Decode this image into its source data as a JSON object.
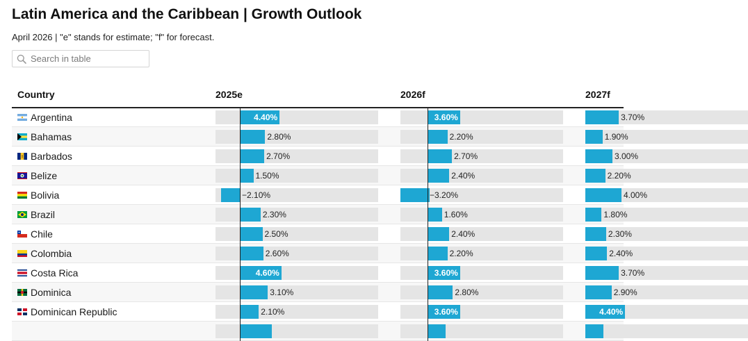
{
  "title": "Latin America and the Caribbean | Growth Outlook",
  "subtitle": "April 2026 | \"e\" stands for estimate; \"f\" for forecast.",
  "search": {
    "placeholder": "Search in table",
    "icon": "search-icon"
  },
  "columns": [
    "Country",
    "2025e",
    "2026f",
    "2027f"
  ],
  "bar_color": "#1ea7d3",
  "rows": [
    {
      "country": "Argentina",
      "flag": "argentina",
      "values": [
        "4.40%",
        "3.60%",
        "3.70%"
      ],
      "nums": [
        4.4,
        3.6,
        3.7
      ],
      "inside": [
        true,
        true,
        false
      ]
    },
    {
      "country": "Bahamas",
      "flag": "bahamas",
      "values": [
        "2.80%",
        "2.20%",
        "1.90%"
      ],
      "nums": [
        2.8,
        2.2,
        1.9
      ],
      "inside": [
        false,
        false,
        false
      ]
    },
    {
      "country": "Barbados",
      "flag": "barbados",
      "values": [
        "2.70%",
        "2.70%",
        "3.00%"
      ],
      "nums": [
        2.7,
        2.7,
        3.0
      ],
      "inside": [
        false,
        false,
        false
      ]
    },
    {
      "country": "Belize",
      "flag": "belize",
      "values": [
        "1.50%",
        "2.40%",
        "2.20%"
      ],
      "nums": [
        1.5,
        2.4,
        2.2
      ],
      "inside": [
        false,
        false,
        false
      ]
    },
    {
      "country": "Bolivia",
      "flag": "bolivia",
      "values": [
        "−2.10%",
        "−3.20%",
        "4.00%"
      ],
      "nums": [
        -2.1,
        -3.2,
        4.0
      ],
      "inside": [
        false,
        false,
        false
      ]
    },
    {
      "country": "Brazil",
      "flag": "brazil",
      "values": [
        "2.30%",
        "1.60%",
        "1.80%"
      ],
      "nums": [
        2.3,
        1.6,
        1.8
      ],
      "inside": [
        false,
        false,
        false
      ]
    },
    {
      "country": "Chile",
      "flag": "chile",
      "values": [
        "2.50%",
        "2.40%",
        "2.30%"
      ],
      "nums": [
        2.5,
        2.4,
        2.3
      ],
      "inside": [
        false,
        false,
        false
      ]
    },
    {
      "country": "Colombia",
      "flag": "colombia",
      "values": [
        "2.60%",
        "2.20%",
        "2.40%"
      ],
      "nums": [
        2.6,
        2.2,
        2.4
      ],
      "inside": [
        false,
        false,
        false
      ]
    },
    {
      "country": "Costa Rica",
      "flag": "costa-rica",
      "values": [
        "4.60%",
        "3.60%",
        "3.70%"
      ],
      "nums": [
        4.6,
        3.6,
        3.7
      ],
      "inside": [
        true,
        true,
        false
      ]
    },
    {
      "country": "Dominica",
      "flag": "dominica",
      "values": [
        "3.10%",
        "2.80%",
        "2.90%"
      ],
      "nums": [
        3.1,
        2.8,
        2.9
      ],
      "inside": [
        false,
        false,
        false
      ]
    },
    {
      "country": "Dominican Republic",
      "flag": "dominican-republic",
      "values": [
        "2.10%",
        "3.60%",
        "4.40%"
      ],
      "nums": [
        2.1,
        3.6,
        4.4
      ],
      "inside": [
        false,
        true,
        true
      ]
    },
    {
      "country": "",
      "flag": "",
      "values": [
        "",
        "",
        ""
      ],
      "nums": [
        3.5,
        2.0,
        2.0
      ],
      "inside": [
        false,
        false,
        false
      ]
    }
  ]
}
